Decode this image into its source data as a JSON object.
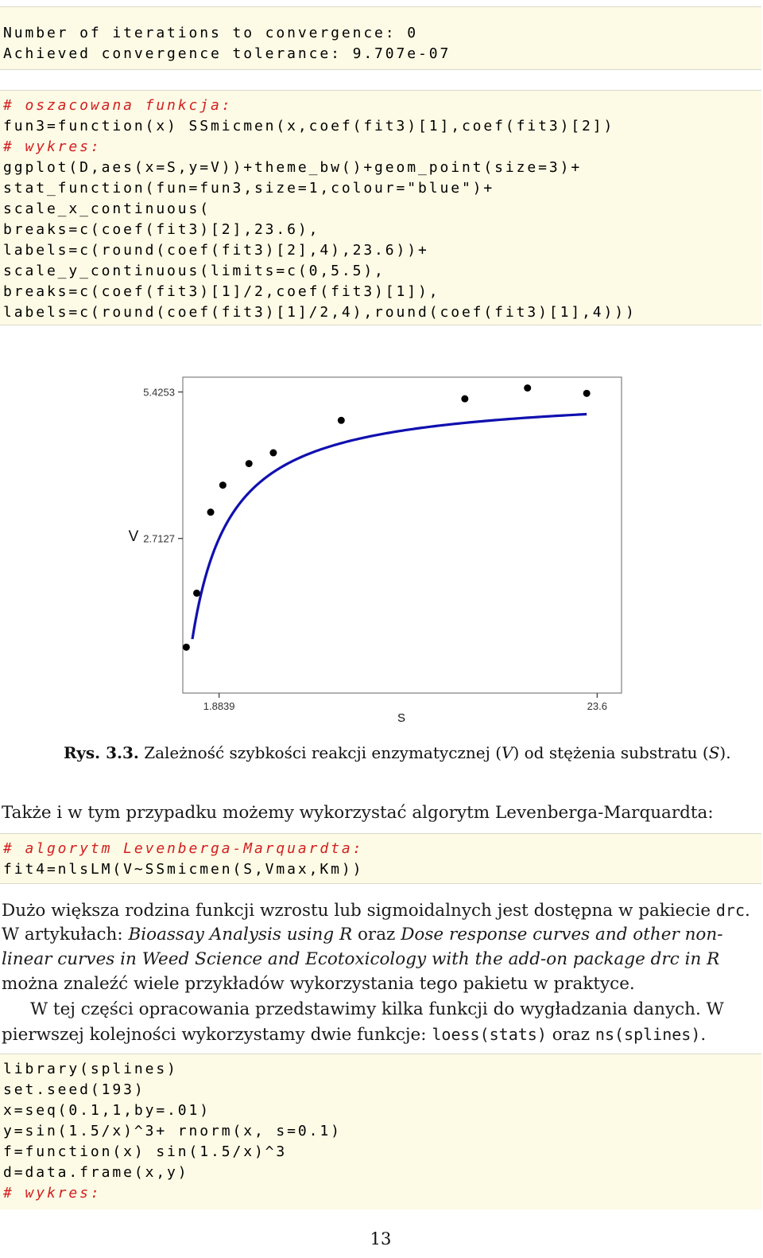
{
  "block1": {
    "lines": [
      "Number of iterations to convergence: 0",
      "Achieved convergence tolerance: 9.707e-07"
    ]
  },
  "block2": {
    "lines": [
      {
        "text": "# oszacowana funkcja:",
        "comment": true
      },
      {
        "text": "fun3=function(x) SSmicmen(x,coef(fit3)[1],coef(fit3)[2])",
        "comment": false
      },
      {
        "text": "# wykres:",
        "comment": true
      },
      {
        "text": "ggplot(D,aes(x=S,y=V))+theme_bw()+geom_point(size=3)+",
        "comment": false
      },
      {
        "text": "stat_function(fun=fun3,size=1,colour=\"blue\")+",
        "comment": false
      },
      {
        "text": "scale_x_continuous(",
        "comment": false
      },
      {
        "text": "breaks=c(coef(fit3)[2],23.6),",
        "comment": false
      },
      {
        "text": "labels=c(round(coef(fit3)[2],4),23.6))+",
        "comment": false
      },
      {
        "text": "scale_y_continuous(limits=c(0,5.5),",
        "comment": false
      },
      {
        "text": "breaks=c(coef(fit3)[1]/2,coef(fit3)[1]),",
        "comment": false
      },
      {
        "text": "labels=c(round(coef(fit3)[1]/2,4),round(coef(fit3)[1],4)))",
        "comment": false
      }
    ]
  },
  "chart_data": {
    "type": "scatter",
    "xlabel": "S",
    "ylabel": "V",
    "x_ticks": [
      {
        "value": 1.8839,
        "label": "1.8839"
      },
      {
        "value": 23.6,
        "label": "23.6"
      }
    ],
    "y_ticks": [
      {
        "value": 2.7127,
        "label": "2.7127"
      },
      {
        "value": 5.4253,
        "label": "5.4253"
      }
    ],
    "xlim": [
      -0.2,
      25.0
    ],
    "ylim": [
      -0.15,
      5.7
    ],
    "points": [
      {
        "x": 0.0,
        "y": 0.7
      },
      {
        "x": 0.6,
        "y": 1.7
      },
      {
        "x": 1.4,
        "y": 3.2
      },
      {
        "x": 2.1,
        "y": 3.7
      },
      {
        "x": 3.6,
        "y": 4.1
      },
      {
        "x": 5.0,
        "y": 4.3
      },
      {
        "x": 8.9,
        "y": 4.9
      },
      {
        "x": 16.0,
        "y": 5.3
      },
      {
        "x": 19.6,
        "y": 5.5
      },
      {
        "x": 23.0,
        "y": 5.4
      }
    ],
    "fit_curve": {
      "color": "#1010b0",
      "Vmax": 5.4253,
      "Km": 1.8839,
      "x_start": 0.35,
      "x_end": 23.0
    },
    "point_color": "#000000",
    "grid": false
  },
  "caption": {
    "label": "Rys. 3.3.",
    "text_before": "Zależność szybkości reakcji enzymatycznej (",
    "var1": "V",
    "text_mid": ") od stężenia substratu (",
    "var2": "S",
    "text_end": ")."
  },
  "para1": "Także i w tym przypadku możemy wykorzystać algorytm Levenberga-Marquardta:",
  "block3": {
    "lines": [
      {
        "text": "# algorytm Levenberga-Marquardta:",
        "comment": true
      },
      {
        "text": "fit4=nlsLM(V~SSmicmen(S,Vmax,Km))",
        "comment": false
      }
    ]
  },
  "para2": {
    "l1_a": "Dużo większa rodzina funkcji wzrostu lub sigmoidalnych jest dostępna w pakiecie ",
    "l1_code": "drc",
    "l1_b": ".",
    "l2_a": "W artykułach: ",
    "l2_it1": "Bioassay Analysis using R",
    "l2_b": " oraz ",
    "l2_it2": "Dose response curves and other non-",
    "l3_it": "linear curves in Weed Science and Ecotoxicology with the add-on package drc in R",
    "l4": "można znaleźć wiele przykładów wykorzystania tego pakietu w praktyce."
  },
  "para3": {
    "l1": "W tej części opracowania przedstawimy kilka funkcji do wygładzania danych. W",
    "l2_a": "pierwszej kolejności wykorzystamy dwie funkcje: ",
    "l2_code1": "loess(stats)",
    "l2_b": " oraz ",
    "l2_code2": "ns(splines)",
    "l2_c": "."
  },
  "block4": {
    "lines": [
      {
        "text": "library(splines)",
        "comment": false
      },
      {
        "text": "set.seed(193)",
        "comment": false
      },
      {
        "text": "x=seq(0.1,1,by=.01)",
        "comment": false
      },
      {
        "text": "y=sin(1.5/x)^3+ rnorm(x, s=0.1)",
        "comment": false
      },
      {
        "text": "f=function(x) sin(1.5/x)^3",
        "comment": false
      },
      {
        "text": "d=data.frame(x,y)",
        "comment": false
      },
      {
        "text": "# wykres:",
        "comment": true
      }
    ]
  },
  "page_number": "13"
}
